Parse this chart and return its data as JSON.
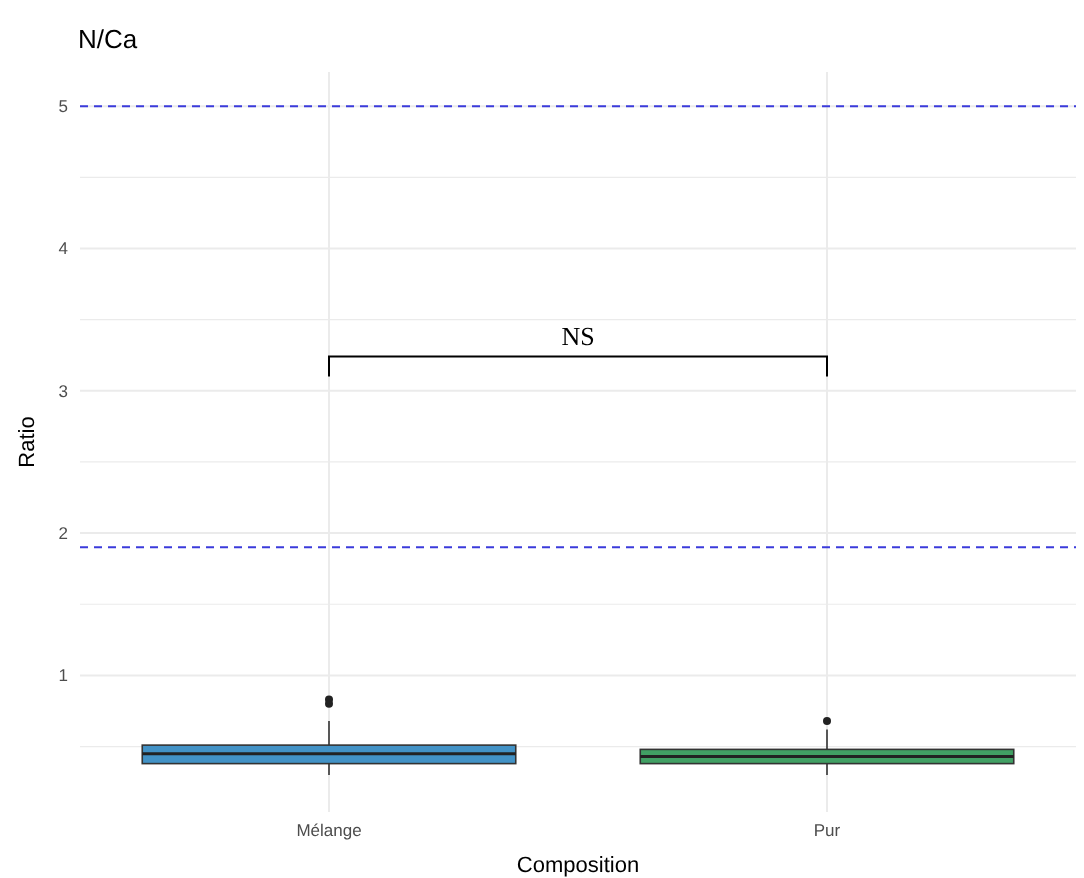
{
  "chart_data": {
    "type": "box",
    "title": "N/Ca",
    "xlabel": "Composition",
    "ylabel": "Ratio",
    "categories": [
      "Mélange",
      "Pur"
    ],
    "colors": [
      "#4292c6",
      "#41a064"
    ],
    "boxes": [
      {
        "low": 0.3,
        "q1": 0.38,
        "median": 0.45,
        "q3": 0.51,
        "high": 0.68,
        "outliers": [
          0.8,
          0.83
        ]
      },
      {
        "low": 0.3,
        "q1": 0.38,
        "median": 0.43,
        "q3": 0.48,
        "high": 0.62,
        "outliers": [
          0.68
        ]
      }
    ],
    "ylim": [
      0.04,
      5.24
    ],
    "yticks": [
      {
        "value": 0.5,
        "label": null
      },
      1,
      {
        "value": 1.5,
        "label": null
      },
      2,
      {
        "value": 2.5,
        "label": null
      },
      3,
      {
        "value": 3.5,
        "label": null
      },
      4,
      {
        "value": 4.5,
        "label": null
      },
      5
    ],
    "grid": true,
    "ref_lines": [
      {
        "axis": "y",
        "value": 5,
        "color": "#3b3bdb",
        "line_style": "dashed"
      },
      {
        "axis": "y",
        "value": 1.9,
        "color": "#3b3bdb",
        "line_style": "dashed"
      }
    ],
    "annotations": [
      "NS"
    ]
  }
}
